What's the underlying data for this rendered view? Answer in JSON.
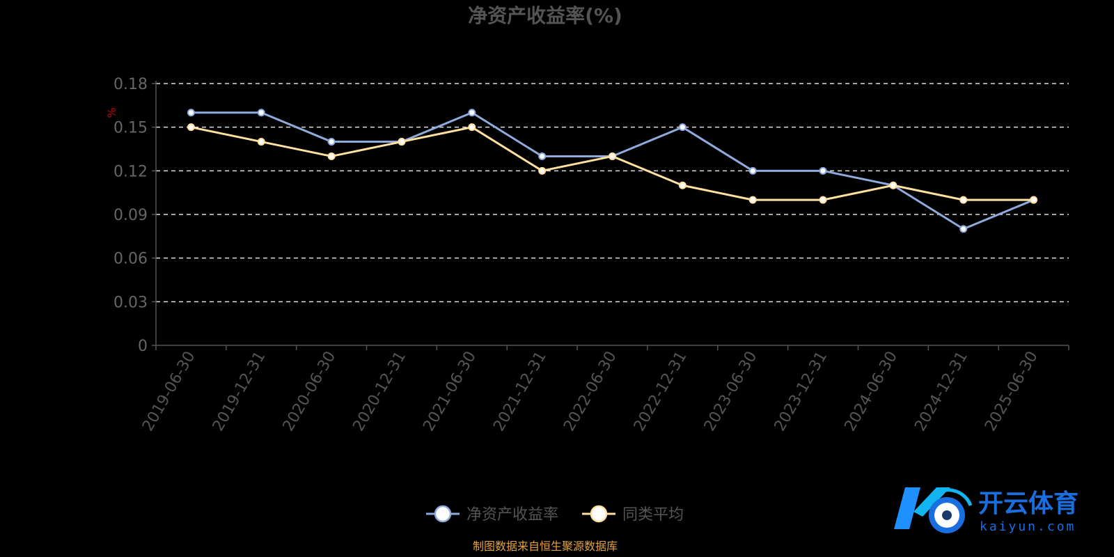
{
  "source_note": "制图数据来自恒生聚源数据库",
  "watermark": {
    "cn": "开云体育",
    "en": "kaiyun.com"
  },
  "colors": {
    "series1": "#8faadc",
    "series2": "#ffe0a0",
    "grid": "#dddddd",
    "unit": "#c00000",
    "source": "#e6a23c"
  },
  "chart_data": {
    "type": "line",
    "title": "净资产收益率(%)",
    "ylabel": "%",
    "xlabel": "",
    "ylim": [
      0,
      0.18
    ],
    "yticks": [
      0,
      0.03,
      0.06,
      0.09,
      0.12,
      0.15,
      0.18
    ],
    "ytick_labels": [
      "0",
      "0.03",
      "0.06",
      "0.09",
      "0.12",
      "0.15",
      "0.18"
    ],
    "categories": [
      "2019-06-30",
      "2019-12-31",
      "2020-06-30",
      "2020-12-31",
      "2021-06-30",
      "2021-12-31",
      "2022-06-30",
      "2022-12-31",
      "2023-06-30",
      "2023-12-31",
      "2024-06-30",
      "2024-12-31",
      "2025-06-30"
    ],
    "series": [
      {
        "name": "净资产收益率",
        "values": [
          0.16,
          0.16,
          0.14,
          0.14,
          0.16,
          0.13,
          0.13,
          0.15,
          0.12,
          0.12,
          0.11,
          0.08,
          0.1
        ]
      },
      {
        "name": "同类平均",
        "values": [
          0.15,
          0.14,
          0.13,
          0.14,
          0.15,
          0.12,
          0.13,
          0.11,
          0.1,
          0.1,
          0.11,
          0.1,
          0.1
        ]
      }
    ],
    "grid": true,
    "legend_position": "bottom-center"
  }
}
